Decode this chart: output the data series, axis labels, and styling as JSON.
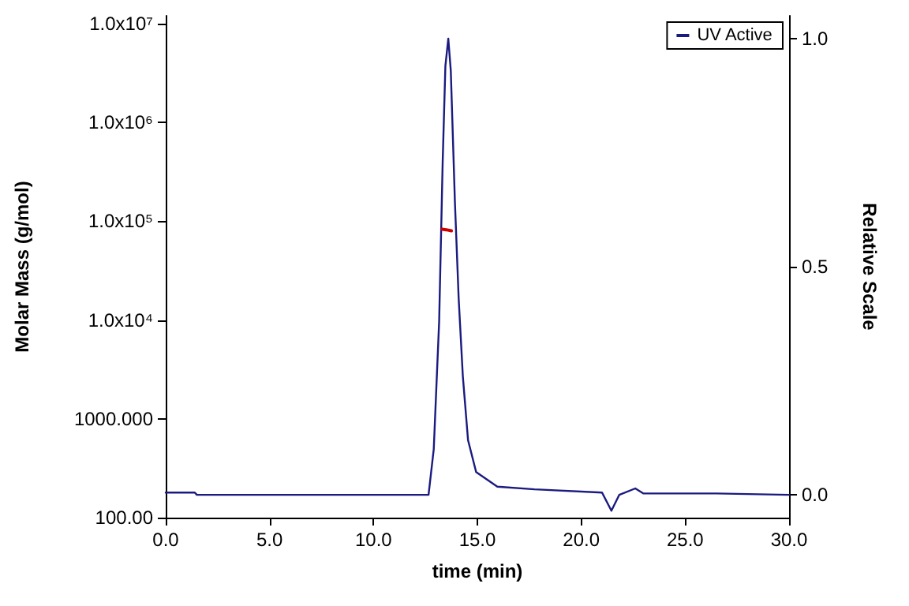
{
  "chart_data": {
    "type": "line",
    "xlabel": "time (min)",
    "ylabel": "Molar Mass (g/mol)",
    "y2label": "Relative Scale",
    "xlim": [
      0,
      30
    ],
    "xticks": [
      {
        "value": 0,
        "label": "0.0"
      },
      {
        "value": 5,
        "label": "5.0"
      },
      {
        "value": 10,
        "label": "10.0"
      },
      {
        "value": 15,
        "label": "15.0"
      },
      {
        "value": 20,
        "label": "20.0"
      },
      {
        "value": 25,
        "label": "25.0"
      },
      {
        "value": 30,
        "label": "30.0"
      }
    ],
    "ylim": [
      100,
      12000000
    ],
    "yticks": [
      {
        "value": 100,
        "label": "100.00"
      },
      {
        "value": 1000,
        "label": "1000.000"
      },
      {
        "value": 10000,
        "label": "1.0x10⁴"
      },
      {
        "value": 100000,
        "label": "1.0x10⁵"
      },
      {
        "value": 1000000,
        "label": "1.0x10⁶"
      },
      {
        "value": 10000000,
        "label": "1.0x10⁷"
      }
    ],
    "y2lim": [
      -0.05,
      1.05
    ],
    "y2ticks": [
      {
        "value": 0,
        "label": "0.0"
      },
      {
        "value": 0.5,
        "label": "0.5"
      },
      {
        "value": 1,
        "label": "1.0"
      }
    ],
    "log": "y",
    "grid": false,
    "legend": "top right",
    "marker": "none",
    "line_style": "solid",
    "series": [
      {
        "name": "UV Active",
        "color": "#1a1a80",
        "axis": "y2",
        "x": [
          0,
          1.4,
          1.5,
          12.65,
          12.9,
          13.16,
          13.33,
          13.46,
          13.6,
          13.72,
          13.92,
          14.1,
          14.3,
          14.55,
          14.94,
          15.96,
          17.75,
          21.0,
          21.45,
          21.83,
          22.6,
          22.98,
          26.5,
          30
        ],
        "values": [
          0.005,
          0.005,
          0,
          0,
          0.1,
          0.38,
          0.73,
          0.94,
          1.0,
          0.93,
          0.64,
          0.43,
          0.26,
          0.12,
          0.05,
          0.018,
          0.012,
          0.005,
          -0.035,
          0,
          0.014,
          0.003,
          0.003,
          0
        ]
      },
      {
        "color": "#cc0000",
        "x": [
          13.3,
          13.5,
          13.75
        ],
        "values": [
          83000,
          82000,
          80000
        ]
      }
    ]
  }
}
